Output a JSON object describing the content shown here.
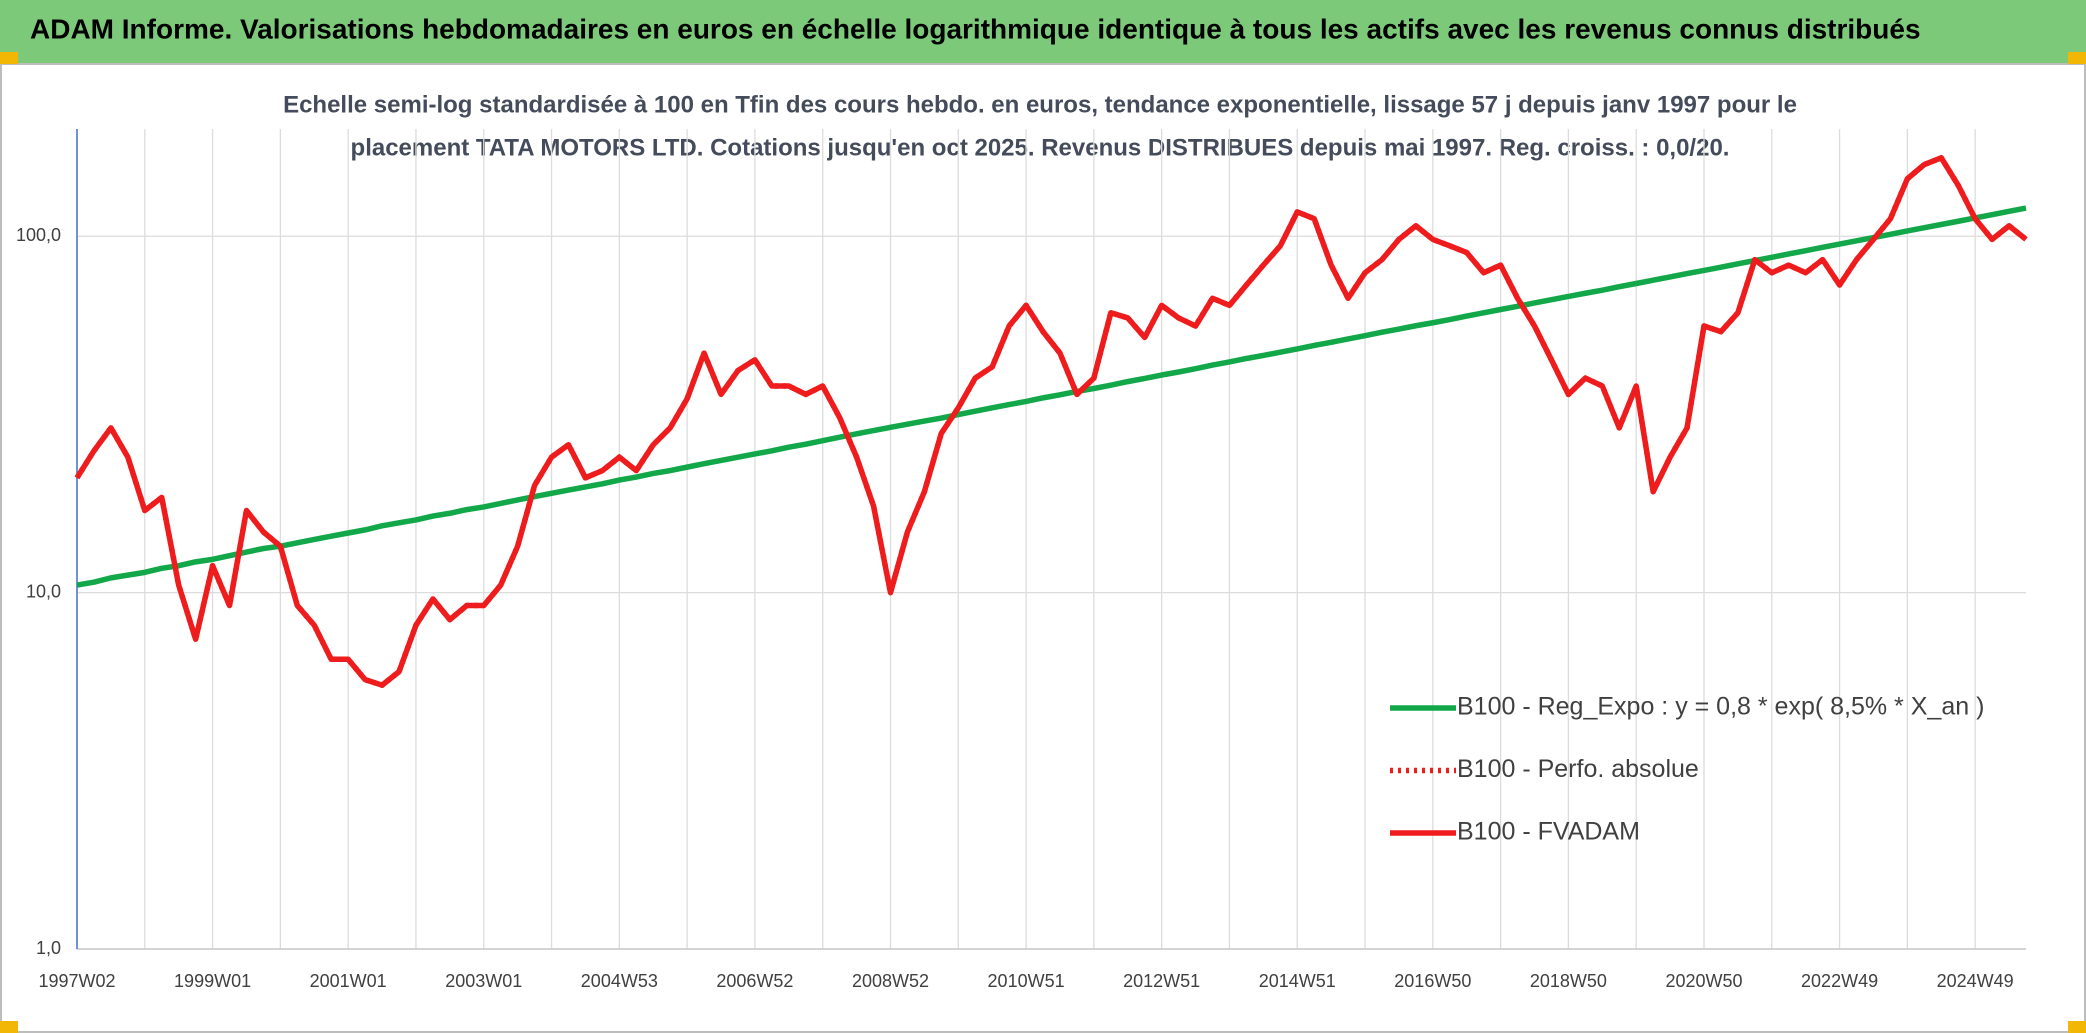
{
  "header": {
    "title": "ADAM Informe. Valorisations hebdomadaires en euros en échelle logarithmique identique à tous les actifs avec les revenus connus distribués"
  },
  "chart_data": {
    "type": "line",
    "subtitle": [
      "Echelle semi-log standardisée à 100 en Tfin des cours hebdo. en euros, tendance exponentielle, lissage 57 j depuis janv 1997 pour le",
      "placement TATA MOTORS LTD. Cotations jusqu'en oct 2025. Revenus DISTRIBUES depuis mai 1997. Reg. croiss. : 0,0/20."
    ],
    "log_scale": true,
    "grid": true,
    "legend": "right",
    "ylim": [
      1,
      200
    ],
    "yticks": [
      {
        "value": 1,
        "label": "1,0"
      },
      {
        "value": 10,
        "label": "10,0"
      },
      {
        "value": 100,
        "label": "100,0"
      }
    ],
    "categories": [
      "1997W02",
      null,
      null,
      null,
      null,
      null,
      null,
      null,
      "1999W01",
      null,
      null,
      null,
      null,
      null,
      null,
      null,
      "2001W01",
      null,
      null,
      null,
      null,
      null,
      null,
      null,
      "2003W01",
      null,
      null,
      null,
      null,
      null,
      null,
      null,
      "2004W53",
      null,
      null,
      null,
      null,
      null,
      null,
      null,
      "2006W52",
      null,
      null,
      null,
      null,
      null,
      null,
      null,
      "2008W52",
      null,
      null,
      null,
      null,
      null,
      null,
      null,
      "2010W51",
      null,
      null,
      null,
      null,
      null,
      null,
      null,
      "2012W51",
      null,
      null,
      null,
      null,
      null,
      null,
      null,
      "2014W51",
      null,
      null,
      null,
      null,
      null,
      null,
      null,
      "2016W50",
      null,
      null,
      null,
      null,
      null,
      null,
      null,
      "2018W50",
      null,
      null,
      null,
      null,
      null,
      null,
      null,
      "2020W50",
      null,
      null,
      null,
      null,
      null,
      null,
      null,
      "2022W49",
      null,
      null,
      null,
      null,
      null,
      null,
      null,
      "2024W49",
      null,
      null,
      null
    ],
    "series": [
      {
        "name": "B100 - Reg_Expo : y = 0,8 * exp( 8,5% *  X_an )",
        "color": "#12a84a",
        "style": "solid",
        "values": [
          10.5,
          10.7,
          11.0,
          11.2,
          11.4,
          11.7,
          11.9,
          12.2,
          12.4,
          12.7,
          13.0,
          13.3,
          13.5,
          13.8,
          14.1,
          14.4,
          14.7,
          15.0,
          15.4,
          15.7,
          16.0,
          16.4,
          16.7,
          17.1,
          17.4,
          17.8,
          18.2,
          18.6,
          19.0,
          19.4,
          19.8,
          20.2,
          20.7,
          21.1,
          21.6,
          22.0,
          22.5,
          23.0,
          23.5,
          24.0,
          24.5,
          25.0,
          25.6,
          26.1,
          26.7,
          27.3,
          27.9,
          28.5,
          29.1,
          29.7,
          30.3,
          30.9,
          31.6,
          32.3,
          33.0,
          33.7,
          34.4,
          35.2,
          35.9,
          36.7,
          37.4,
          38.2,
          39.1,
          39.9,
          40.8,
          41.6,
          42.5,
          43.5,
          44.4,
          45.4,
          46.3,
          47.3,
          48.3,
          49.4,
          50.4,
          51.5,
          52.6,
          53.8,
          54.9,
          56.1,
          57.2,
          58.4,
          59.7,
          61.0,
          62.3,
          63.6,
          65.0,
          66.4,
          67.8,
          69.2,
          70.6,
          72.2,
          73.7,
          75.3,
          76.9,
          78.6,
          80.2,
          81.9,
          83.7,
          85.5,
          87.3,
          89.2,
          91.1,
          93.1,
          95.1,
          97.1,
          99.2,
          101.3,
          103.5,
          105.7,
          107.9,
          110.2,
          112.6,
          115.0,
          117.5,
          120.0
        ]
      },
      {
        "name": "B100 - Perfo. absolue",
        "color": "#ee1c1c",
        "style": "dotted",
        "values": [
          21,
          25,
          29,
          24,
          17,
          18.5,
          10.5,
          7.4,
          11.9,
          9.2,
          17,
          14.8,
          13.5,
          9.2,
          8.1,
          6.5,
          6.5,
          5.7,
          5.5,
          6.0,
          8.1,
          9.6,
          8.4,
          9.2,
          9.2,
          10.5,
          13.5,
          20,
          24,
          26,
          21,
          22,
          24,
          22,
          26,
          29,
          35,
          47,
          36,
          42,
          45,
          38,
          38,
          36,
          38,
          31,
          24,
          17.5,
          10,
          14.8,
          19.2,
          28,
          33,
          40,
          43,
          56,
          64,
          54,
          47,
          36,
          40,
          61,
          59,
          52,
          64,
          59,
          56,
          67,
          64,
          73,
          83,
          94,
          117,
          112,
          83,
          67,
          79,
          86,
          98,
          107,
          98,
          94,
          90,
          79,
          83,
          67,
          56,
          45,
          36,
          40,
          38,
          29,
          38,
          19.2,
          24,
          29,
          56,
          54,
          61,
          86,
          79,
          83,
          79,
          86,
          73,
          86,
          98,
          112,
          145,
          159,
          166,
          139,
          112,
          98,
          107,
          98
        ]
      },
      {
        "name": "B100 - FVADAM",
        "color": "#ee1c1c",
        "style": "solid",
        "values": [
          21,
          25,
          29,
          24,
          17,
          18.5,
          10.5,
          7.4,
          11.9,
          9.2,
          17,
          14.8,
          13.5,
          9.2,
          8.1,
          6.5,
          6.5,
          5.7,
          5.5,
          6.0,
          8.1,
          9.6,
          8.4,
          9.2,
          9.2,
          10.5,
          13.5,
          20,
          24,
          26,
          21,
          22,
          24,
          22,
          26,
          29,
          35,
          47,
          36,
          42,
          45,
          38,
          38,
          36,
          38,
          31,
          24,
          17.5,
          10,
          14.8,
          19.2,
          28,
          33,
          40,
          43,
          56,
          64,
          54,
          47,
          36,
          40,
          61,
          59,
          52,
          64,
          59,
          56,
          67,
          64,
          73,
          83,
          94,
          117,
          112,
          83,
          67,
          79,
          86,
          98,
          107,
          98,
          94,
          90,
          79,
          83,
          67,
          56,
          45,
          36,
          40,
          38,
          29,
          38,
          19.2,
          24,
          29,
          56,
          54,
          61,
          86,
          79,
          83,
          79,
          86,
          73,
          86,
          98,
          112,
          145,
          159,
          166,
          139,
          112,
          98,
          107,
          98
        ]
      }
    ]
  }
}
